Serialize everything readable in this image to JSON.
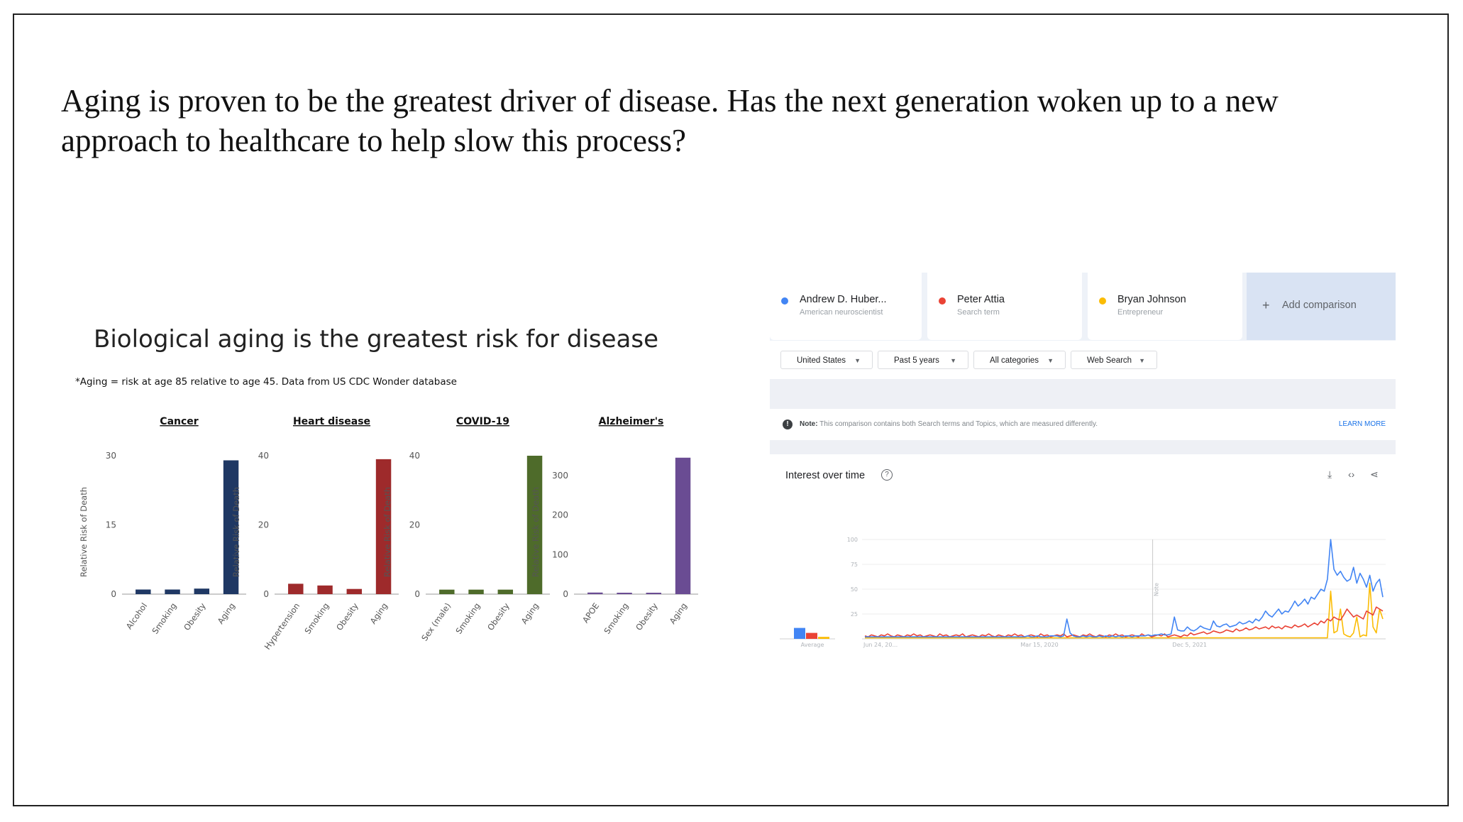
{
  "headline": "Aging is proven to be the greatest driver of disease. Has the next generation woken up to a new approach to healthcare to help slow this process?",
  "left_panel": {
    "title": "Biological aging is the greatest risk for disease",
    "note": "*Aging = risk at age 85 relative to age 45.  Data from US CDC Wonder database"
  },
  "right_panel": {
    "terms": [
      {
        "name": "Andrew D. Huber...",
        "sub": "American neuroscientist",
        "color": "#4285f4"
      },
      {
        "name": "Peter Attia",
        "sub": "Search term",
        "color": "#ea4335"
      },
      {
        "name": "Bryan Johnson",
        "sub": "Entrepreneur",
        "color": "#fbbc04"
      }
    ],
    "add_comparison": "Add comparison",
    "filters": [
      "United States",
      "Past 5 years",
      "All categories",
      "Web Search"
    ],
    "note_label": "Note:",
    "note_text": "This comparison contains both Search terms and Topics, which are measured differently.",
    "learn_more": "LEARN MORE",
    "interest_title": "Interest over time"
  },
  "chart_data": [
    {
      "type": "bar",
      "title": "Cancer",
      "ylabel": "Relative Risk of Death",
      "categories": [
        "Alcohol",
        "Smoking",
        "Obesity",
        "Aging"
      ],
      "values": [
        1,
        1,
        1.2,
        29
      ],
      "yticks": [
        0,
        15,
        30
      ],
      "ylim": [
        0,
        30
      ],
      "color": "#1f3864"
    },
    {
      "type": "bar",
      "title": "Heart disease",
      "ylabel": "Relative Risk of Death",
      "categories": [
        "Hypertension",
        "Smoking",
        "Obesity",
        "Aging"
      ],
      "values": [
        3,
        2.5,
        1.5,
        39
      ],
      "yticks": [
        0,
        20,
        40
      ],
      "ylim": [
        0,
        40
      ],
      "color": "#9e2a2b"
    },
    {
      "type": "bar",
      "title": "COVID-19",
      "ylabel": "Relative Risk of Death",
      "categories": [
        "Sex (male)",
        "Smoking",
        "Obesity",
        "Aging"
      ],
      "values": [
        1.3,
        1.3,
        1.3,
        40
      ],
      "yticks": [
        0,
        20,
        40
      ],
      "ylim": [
        0,
        40
      ],
      "color": "#4e6b2a"
    },
    {
      "type": "bar",
      "title": "Alzheimer's",
      "ylabel": "Relative Risk of Death",
      "categories": [
        "APOE",
        "Smoking",
        "Obesity",
        "Aging"
      ],
      "values": [
        4,
        1,
        1,
        345
      ],
      "yticks": [
        0,
        100,
        200,
        300
      ],
      "ylim": [
        0,
        350
      ],
      "color": "#6a4c93"
    },
    {
      "type": "line",
      "title": "Interest over time",
      "x_tick_labels": [
        "Jun 24, 20...",
        "Mar 15, 2020",
        "Dec 5, 2021"
      ],
      "yticks": [
        25,
        50,
        75,
        100
      ],
      "ylim": [
        0,
        100
      ],
      "annotation": "Note",
      "average_label": "Average",
      "averages": [
        11,
        6,
        2
      ],
      "series": [
        {
          "name": "Andrew D. Huber...",
          "color": "#4285f4",
          "values": [
            2,
            2,
            2,
            2,
            2,
            2,
            2,
            2,
            2,
            2,
            2,
            2,
            2,
            2,
            2,
            2,
            2,
            2,
            2,
            2,
            2,
            2,
            2,
            2,
            2,
            2,
            2,
            2,
            2,
            2,
            2,
            2,
            2,
            2,
            2,
            2,
            2,
            2,
            2,
            2,
            2,
            2,
            2,
            2,
            2,
            2,
            2,
            2,
            2,
            2,
            3,
            2,
            2,
            3,
            2,
            2,
            2,
            3,
            3,
            3,
            2,
            3,
            20,
            6,
            3,
            2,
            2,
            3,
            2,
            3,
            2,
            2,
            3,
            2,
            3,
            2,
            3,
            2,
            3,
            2,
            3,
            3,
            2,
            3,
            3,
            3,
            3,
            4,
            3,
            4,
            4,
            5,
            4,
            4,
            5,
            22,
            9,
            8,
            8,
            12,
            9,
            8,
            10,
            13,
            11,
            10,
            9,
            18,
            13,
            12,
            14,
            15,
            12,
            13,
            14,
            17,
            15,
            16,
            18,
            16,
            20,
            18,
            22,
            28,
            24,
            22,
            26,
            30,
            25,
            28,
            27,
            32,
            38,
            33,
            36,
            40,
            35,
            42,
            40,
            45,
            50,
            48,
            60,
            100,
            70,
            64,
            68,
            62,
            58,
            60,
            72,
            56,
            66,
            60,
            52,
            64,
            48,
            56,
            60,
            42
          ]
        },
        {
          "name": "Peter Attia",
          "color": "#ea4335",
          "values": [
            3,
            2,
            4,
            3,
            2,
            4,
            3,
            5,
            3,
            2,
            4,
            3,
            2,
            4,
            3,
            5,
            3,
            4,
            2,
            3,
            4,
            3,
            2,
            5,
            3,
            4,
            2,
            3,
            4,
            3,
            5,
            2,
            3,
            4,
            3,
            2,
            4,
            3,
            5,
            3,
            2,
            4,
            3,
            2,
            4,
            3,
            5,
            3,
            4,
            2,
            3,
            4,
            3,
            2,
            5,
            3,
            4,
            2,
            3,
            4,
            3,
            5,
            2,
            3,
            4,
            3,
            2,
            4,
            3,
            5,
            3,
            2,
            4,
            3,
            2,
            4,
            3,
            5,
            3,
            4,
            2,
            3,
            4,
            3,
            2,
            5,
            3,
            4,
            2,
            3,
            4,
            3,
            5,
            2,
            3,
            4,
            3,
            2,
            4,
            3,
            6,
            4,
            5,
            6,
            7,
            5,
            6,
            8,
            7,
            6,
            7,
            9,
            8,
            7,
            10,
            8,
            9,
            11,
            9,
            10,
            12,
            10,
            11,
            12,
            10,
            13,
            11,
            12,
            10,
            13,
            12,
            11,
            14,
            12,
            13,
            15,
            12,
            14,
            16,
            14,
            18,
            16,
            20,
            18,
            22,
            20,
            19,
            24,
            30,
            26,
            22,
            24,
            22,
            20,
            28,
            26,
            24,
            32,
            30,
            28
          ]
        },
        {
          "name": "Bryan Johnson",
          "color": "#fbbc04",
          "values": [
            1,
            1,
            1,
            1,
            1,
            1,
            1,
            1,
            1,
            1,
            1,
            1,
            1,
            1,
            1,
            1,
            1,
            1,
            1,
            1,
            1,
            1,
            1,
            1,
            1,
            1,
            1,
            1,
            1,
            1,
            1,
            1,
            1,
            1,
            1,
            1,
            1,
            1,
            1,
            1,
            1,
            1,
            1,
            1,
            1,
            1,
            1,
            1,
            1,
            1,
            1,
            1,
            1,
            1,
            1,
            1,
            1,
            1,
            1,
            1,
            1,
            1,
            1,
            1,
            1,
            1,
            1,
            1,
            1,
            1,
            1,
            1,
            1,
            1,
            1,
            1,
            1,
            1,
            1,
            1,
            1,
            1,
            1,
            1,
            1,
            1,
            1,
            1,
            1,
            1,
            1,
            1,
            1,
            1,
            1,
            1,
            1,
            1,
            1,
            1,
            1,
            1,
            1,
            1,
            1,
            1,
            1,
            1,
            1,
            1,
            1,
            1,
            1,
            1,
            1,
            1,
            1,
            1,
            1,
            1,
            1,
            1,
            1,
            1,
            1,
            1,
            1,
            1,
            1,
            1,
            1,
            1,
            1,
            1,
            1,
            1,
            1,
            1,
            1,
            1,
            1,
            1,
            1,
            48,
            6,
            8,
            30,
            5,
            3,
            2,
            6,
            22,
            2,
            4,
            3,
            56,
            12,
            6,
            30,
            20
          ]
        }
      ]
    }
  ]
}
